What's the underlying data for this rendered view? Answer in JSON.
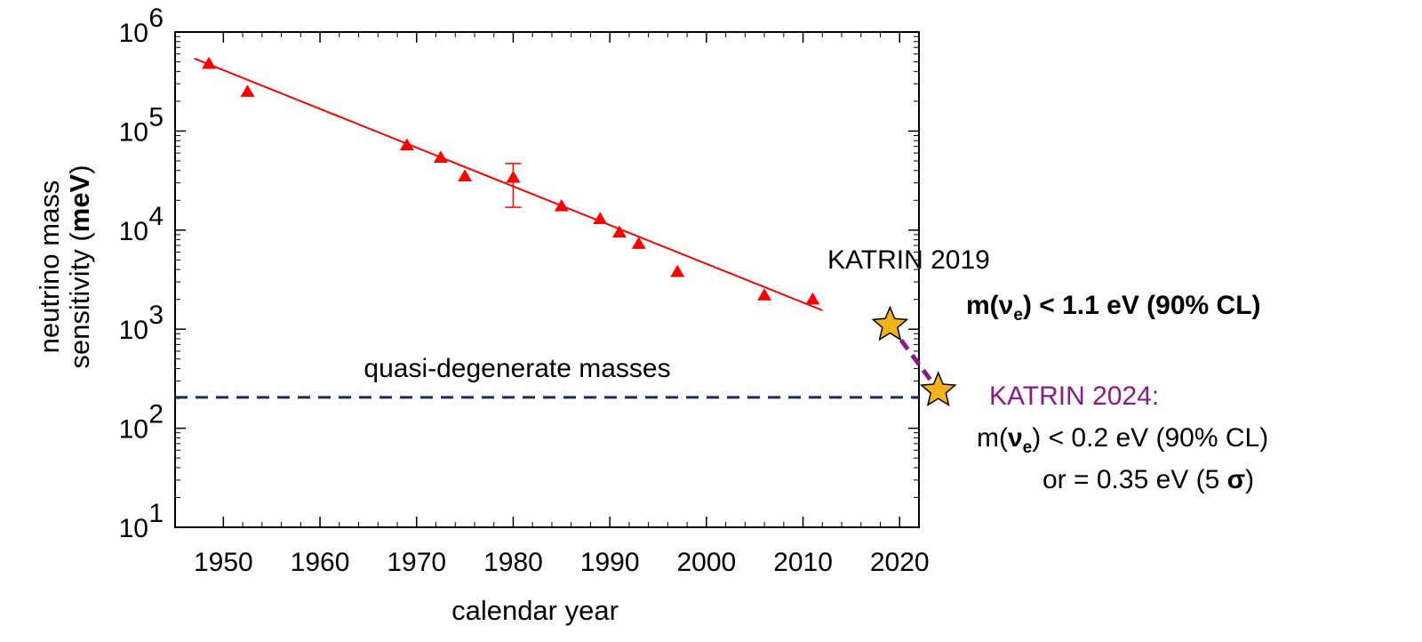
{
  "chart_data": {
    "type": "scatter",
    "title": "",
    "xlabel": "calendar year",
    "ylabel_line1": "neutrino mass",
    "ylabel_line2_prefix": "sensitivity (",
    "ylabel_unit": "meV",
    "ylabel_line2_suffix": ")",
    "x_scale": "linear",
    "y_scale": "log",
    "xlim": [
      1945,
      2022
    ],
    "ylim": [
      10,
      1000000
    ],
    "x_ticks": [
      "1950",
      "1960",
      "1970",
      "1980",
      "1990",
      "2000",
      "2010",
      "2020"
    ],
    "y_ticks": [
      {
        "base": "10",
        "exp": "1"
      },
      {
        "base": "10",
        "exp": "2"
      },
      {
        "base": "10",
        "exp": "3"
      },
      {
        "base": "10",
        "exp": "4"
      },
      {
        "base": "10",
        "exp": "5"
      },
      {
        "base": "10",
        "exp": "6"
      }
    ],
    "grid": false,
    "series": [
      {
        "marker": "triangle",
        "color": "#ff0000",
        "points": [
          {
            "x": 1948.5,
            "y": 480000
          },
          {
            "x": 1952.5,
            "y": 250000
          },
          {
            "x": 1969,
            "y": 72000
          },
          {
            "x": 1972.5,
            "y": 54000
          },
          {
            "x": 1975,
            "y": 35000
          },
          {
            "x": 1980,
            "y": 34000,
            "y_err_low": 17000,
            "y_err_high": 47000
          },
          {
            "x": 1985,
            "y": 17500
          },
          {
            "x": 1989,
            "y": 13000
          },
          {
            "x": 1991,
            "y": 9500
          },
          {
            "x": 1993,
            "y": 7300
          },
          {
            "x": 1997,
            "y": 3800
          },
          {
            "x": 2006,
            "y": 2200
          },
          {
            "x": 2011,
            "y": 2000
          }
        ]
      }
    ],
    "fit_line": {
      "color": "#ff0000",
      "x": [
        1947,
        2012
      ],
      "y": [
        540000,
        1550
      ]
    },
    "reference_line": {
      "y": 205,
      "color": "#1a2a5a",
      "style": "dashed",
      "label": "quasi-degenerate masses"
    },
    "katrin_points": [
      {
        "x": 2019,
        "y": 1100,
        "marker": "star",
        "color": "#f5b21a"
      },
      {
        "x": 2024,
        "y": 240,
        "marker": "star",
        "color": "#f5b21a"
      }
    ],
    "katrin_link_color": "#8a1a8a",
    "annotations": {
      "katrin2019_title": "KATRIN 2019",
      "katrin2019_m": "m(",
      "katrin2019_nu": "ν",
      "katrin2019_sub": "e",
      "katrin2019_rest": ")  < 1.1 eV (90% CL)",
      "katrin2024_title": "KATRIN 2024:",
      "katrin2024_m": "m(",
      "katrin2024_nu": "ν",
      "katrin2024_sub": "e",
      "katrin2024_rest": ") < 0.2 eV (90% CL)",
      "katrin2024_line2_prefix": "or = 0.35 eV (5 ",
      "katrin2024_sigma": "σ",
      "katrin2024_line2_suffix": ")"
    }
  }
}
